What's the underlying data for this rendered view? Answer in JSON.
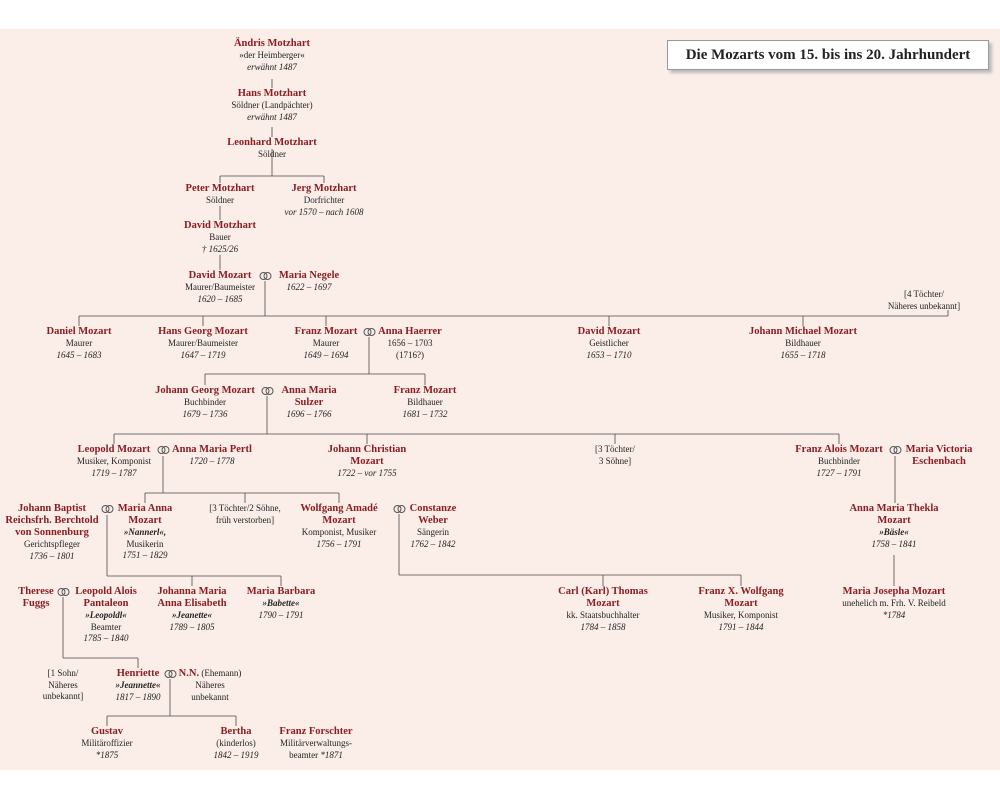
{
  "title": "Die Mozarts vom 15. bis ins 20. Jahrhundert",
  "colors": {
    "name": "#8c1d22",
    "text": "#222222",
    "background": "#fbeee9",
    "line": "#4a4a4a"
  },
  "marriage_icon": "interlocked-rings-icon",
  "persons": {
    "andris": {
      "name": "Ändris Motzhart",
      "lines": [
        "»der Heimberger«"
      ],
      "italic": [
        "erwähnt 1487"
      ]
    },
    "hans": {
      "name": "Hans Motzhart",
      "lines": [
        "Söldner (Landpächter)"
      ],
      "italic": [
        "erwähnt 1487"
      ]
    },
    "leonhard": {
      "name": "Leonhard Motzhart",
      "lines": [
        "Söldner"
      ]
    },
    "peter": {
      "name": "Peter Motzhart",
      "lines": [
        "Söldner"
      ]
    },
    "jerg": {
      "name": "Jerg Motzhart",
      "lines": [
        "Dorfrichter"
      ],
      "italic": [
        "vor 1570 – nach 1608"
      ]
    },
    "david1": {
      "name": "David Motzhart",
      "lines": [
        "Bauer"
      ],
      "italic": [
        "† 1625/26"
      ]
    },
    "david2": {
      "name": "David Mozart",
      "lines": [
        "Maurer/Baumeister"
      ],
      "italic": [
        "1620 – 1685"
      ]
    },
    "negele": {
      "name": "Maria Negele",
      "italic": [
        "1622 – 1697"
      ]
    },
    "daniel": {
      "name": "Daniel Mozart",
      "lines": [
        "Maurer"
      ],
      "italic": [
        "1645 – 1683"
      ]
    },
    "hansgeorg": {
      "name": "Hans Georg Mozart",
      "lines": [
        "Maurer/Baumeister"
      ],
      "italic": [
        "1647 – 1719"
      ]
    },
    "franz1": {
      "name": "Franz Mozart",
      "lines": [
        "Maurer"
      ],
      "italic": [
        "1649 – 1694"
      ]
    },
    "haerrer": {
      "name": "Anna Haerrer",
      "lines": [
        "1656 – 1703",
        "(1716?)"
      ]
    },
    "david3": {
      "name": "David Mozart",
      "lines": [
        "Geistlicher"
      ],
      "italic": [
        "1653 – 1710"
      ]
    },
    "johannmichael": {
      "name": "Johann Michael Mozart",
      "lines": [
        "Bildhauer"
      ],
      "italic": [
        "1655 – 1718"
      ]
    },
    "johanngeorg": {
      "name": "Johann Georg Mozart",
      "lines": [
        "Buchbinder"
      ],
      "italic": [
        "1679 – 1736"
      ]
    },
    "sulzer": {
      "name": "Anna Maria Sulzer",
      "italic": [
        "1696 – 1766"
      ]
    },
    "franz2": {
      "name": "Franz Mozart",
      "lines": [
        "Bildhauer"
      ],
      "italic": [
        "1681 – 1732"
      ]
    },
    "leopold": {
      "name": "Leopold Mozart",
      "lines": [
        "Musiker, Komponist"
      ],
      "italic": [
        "1719 – 1787"
      ]
    },
    "pertl": {
      "name": "Anna Maria Pertl",
      "italic": [
        "1720 – 1778"
      ]
    },
    "johannchristian": {
      "name": "Johann Christian Mozart",
      "italic": [
        "1722 – vor 1755"
      ]
    },
    "franzalois": {
      "name": "Franz Alois Mozart",
      "lines": [
        "Buchbinder"
      ],
      "italic": [
        "1727 – 1791"
      ]
    },
    "eschenbach": {
      "name": "Maria Victoria Eschenbach"
    },
    "berchtold": {
      "name": "Johann Baptist Reichsfrh. Berchtold von Sonnenburg",
      "lines": [
        "Gerichtspfleger"
      ],
      "italic": [
        "1736 – 1801"
      ]
    },
    "nannerl": {
      "name": "Maria Anna Mozart",
      "nick": "»Nannerl«,",
      "lines": [
        "Musikerin"
      ],
      "italic": [
        "1751 – 1829"
      ]
    },
    "wolfgang": {
      "name": "Wolfgang Amadé Mozart",
      "lines": [
        "Komponist, Musiker"
      ],
      "italic": [
        "1756 – 1791"
      ]
    },
    "weber": {
      "name": "Constanze Weber",
      "lines": [
        "Sängerin"
      ],
      "italic": [
        "1762 – 1842"
      ]
    },
    "baesle": {
      "name": "Anna Maria Thekla Mozart",
      "nick": "»Bäsle«",
      "italic": [
        "1758 – 1841"
      ]
    },
    "fuggs": {
      "name": "Therese Fuggs"
    },
    "leopoldalois": {
      "name": "Leopold Alois Pantaleon",
      "nick": "»Leopoldl«",
      "lines": [
        "Beamter"
      ],
      "italic": [
        "1785 – 1840"
      ]
    },
    "jeanette1": {
      "name": "Johanna Maria Anna Elisabeth",
      "nick": "»Jeanette«",
      "italic": [
        "1789 – 1805"
      ]
    },
    "babette": {
      "name": "Maria Barbara",
      "nick": "»Babette«",
      "italic": [
        "1790 – 1791"
      ]
    },
    "carl": {
      "name": "Carl (Karl) Thomas Mozart",
      "lines": [
        "kk. Staatsbuchhalter"
      ],
      "italic": [
        "1784 – 1858"
      ]
    },
    "franzx": {
      "name": "Franz X. Wolfgang Mozart",
      "lines": [
        "Musiker, Komponist"
      ],
      "italic": [
        "1791 – 1844"
      ]
    },
    "mariajosepha": {
      "name": "Maria Josepha Mozart",
      "lines": [
        "unehelich m. Frh. V. Reibeld"
      ],
      "italic": [
        "*1784"
      ]
    },
    "henriette": {
      "name": "Henriette",
      "nick": "»Jeannette«",
      "italic": [
        "1817 – 1890"
      ]
    },
    "nn": {
      "name": "N.N.",
      "extra": "(Ehemann)",
      "lines": [
        "Näheres",
        "unbekannt"
      ]
    },
    "gustav": {
      "name": "Gustav",
      "lines": [
        "Militäroffizier"
      ],
      "italic": [
        "*1875"
      ]
    },
    "bertha": {
      "name": "Bertha",
      "lines": [
        "(kinderlos)"
      ],
      "italic": [
        "1842 – 1919"
      ]
    },
    "forschter": {
      "name": "Franz Forschter",
      "lines": [
        "Militärverwaltungs-"
      ],
      "tail": "beamter",
      "tailItalic": "*1871"
    }
  },
  "notes": {
    "n4toechter": [
      "[4 Töchter/",
      "Näheres unbekannt]"
    ],
    "n3toechter": [
      "[3 Töchter/",
      "3 Söhne]"
    ],
    "n3toechter2": [
      "[3 Töchter/2 Söhne,",
      "früh verstorben]"
    ],
    "n1sohn": [
      "[1 Sohn/",
      "Näheres",
      "unbekannt]"
    ]
  }
}
